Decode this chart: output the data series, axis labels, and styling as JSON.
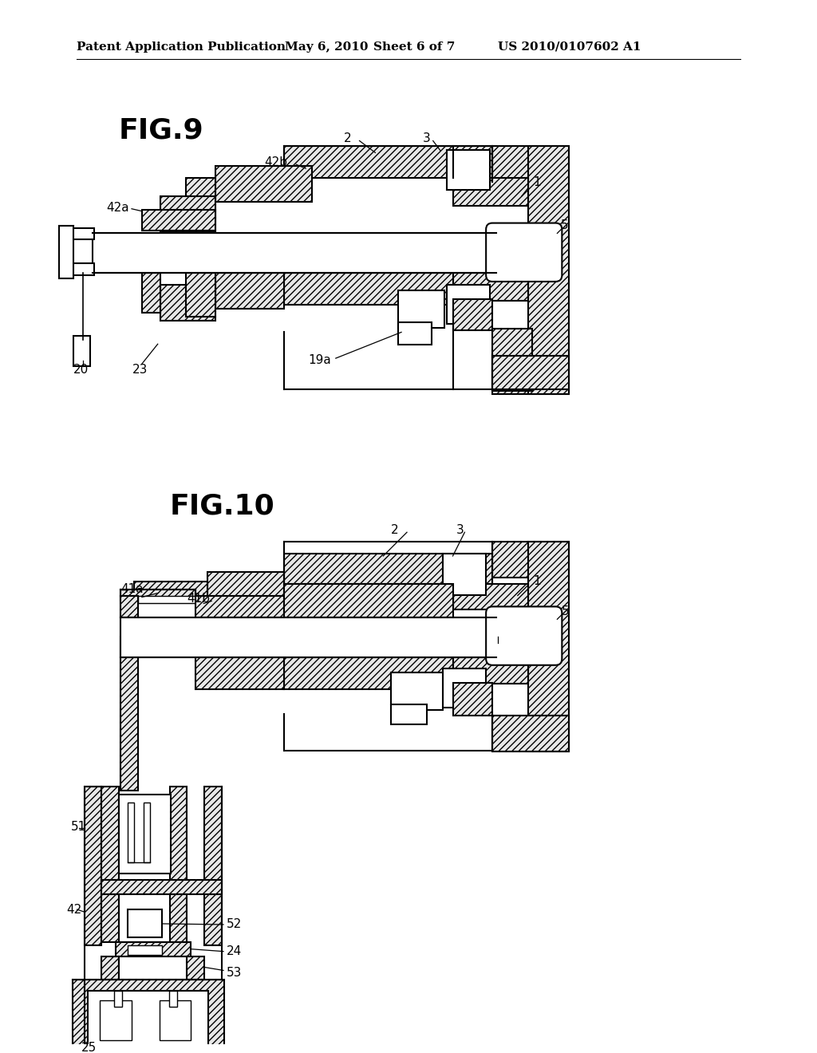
{
  "background_color": "#ffffff",
  "header_text1": "Patent Application Publication",
  "header_text2": "May 6, 2010",
  "header_text3": "Sheet 6 of 7",
  "header_text4": "US 2010/0107602 A1",
  "fig9_title": "FIG.9",
  "fig10_title": "FIG.10"
}
